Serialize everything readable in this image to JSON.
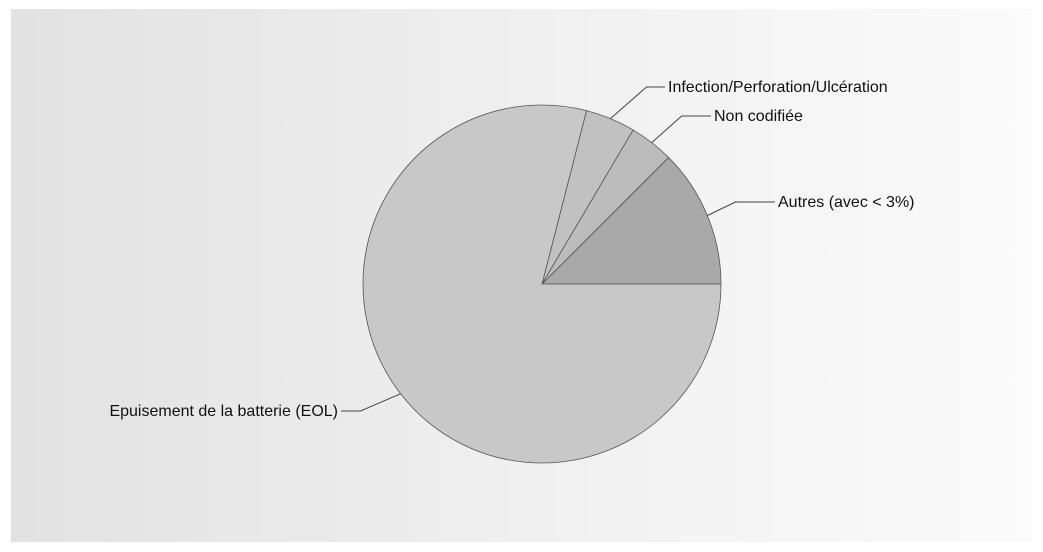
{
  "chart_data": {
    "type": "pie",
    "title": "",
    "slices": [
      {
        "label": "Autres (avec < 3%)",
        "value": 12.5,
        "color": "#a9a9a9"
      },
      {
        "label": "Non codifiée",
        "value": 4.0,
        "color": "#bcbcbc"
      },
      {
        "label": "Infection/Perforation/Ulcération",
        "value": 4.5,
        "color": "#c1c1c1"
      },
      {
        "label": "Epuisement de la batterie (EOL)",
        "value": 79.0,
        "color": "#c8c8c8"
      }
    ],
    "start_angle_deg": 0,
    "direction": "counterclockwise",
    "legend": "none"
  }
}
